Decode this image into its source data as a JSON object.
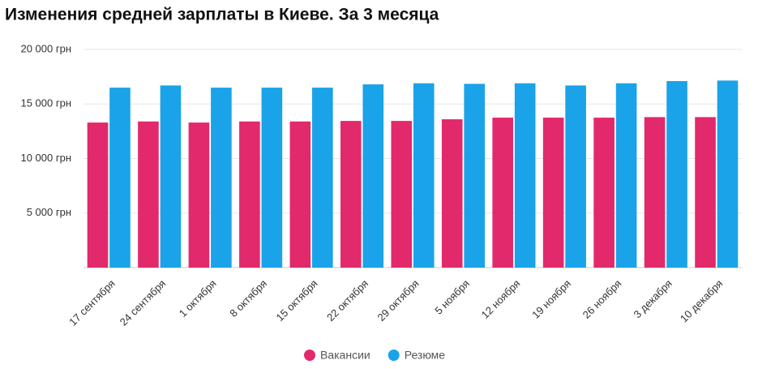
{
  "chart_data": {
    "type": "bar",
    "title": "Изменения средней зарплаты в Киеве. За 3 месяца",
    "categories": [
      "17 сентября",
      "24 сентября",
      "1 октября",
      "8 октября",
      "15 октября",
      "22 октября",
      "29 октября",
      "5 ноября",
      "12 ноября",
      "19 ноября",
      "26 ноября",
      "3 декабря",
      "10 декабря"
    ],
    "series": [
      {
        "name": "Вакансии",
        "color": "#e2296b",
        "values": [
          13300,
          13400,
          13300,
          13400,
          13400,
          13450,
          13450,
          13600,
          13750,
          13750,
          13750,
          13800,
          13800
        ]
      },
      {
        "name": "Резюме",
        "color": "#1aa3e8",
        "values": [
          16500,
          16700,
          16500,
          16500,
          16500,
          16800,
          16900,
          16850,
          16900,
          16700,
          16900,
          17100,
          17150
        ]
      }
    ],
    "ylim": [
      0,
      20000
    ],
    "yticks": [
      {
        "value": 5000,
        "label": "5 000 грн"
      },
      {
        "value": 10000,
        "label": "10 000 грн"
      },
      {
        "value": 15000,
        "label": "15 000 грн"
      },
      {
        "value": 20000,
        "label": "20 000 грн"
      }
    ],
    "grid": true,
    "legend": "bottom"
  }
}
